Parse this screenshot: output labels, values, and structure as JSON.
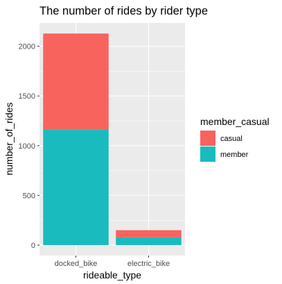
{
  "chart_data": {
    "type": "bar",
    "stacked": true,
    "title": "The number of rides by rider type",
    "xlabel": "rideable_type",
    "ylabel": "number_of_rides",
    "categories": [
      "docked_bike",
      "electric_bike"
    ],
    "series": [
      {
        "name": "member",
        "color": "#1ABBBF",
        "values": [
          1165,
          78
        ]
      },
      {
        "name": "casual",
        "color": "#F8635E",
        "values": [
          963,
          72
        ]
      }
    ],
    "ylim": [
      -105,
      2235
    ],
    "yticks": [
      0,
      500,
      1000,
      1500,
      2000
    ],
    "yticks_labels": [
      "0",
      "500",
      "1000",
      "1500",
      "2000"
    ],
    "grid": true,
    "panel_background": "#EBEBEB",
    "grid_color": "#FFFFFF",
    "legend": {
      "title": "member_casual",
      "placement": "right",
      "entries": [
        {
          "label": "casual",
          "color": "#F8635E"
        },
        {
          "label": "member",
          "color": "#1ABBBF"
        }
      ]
    }
  }
}
